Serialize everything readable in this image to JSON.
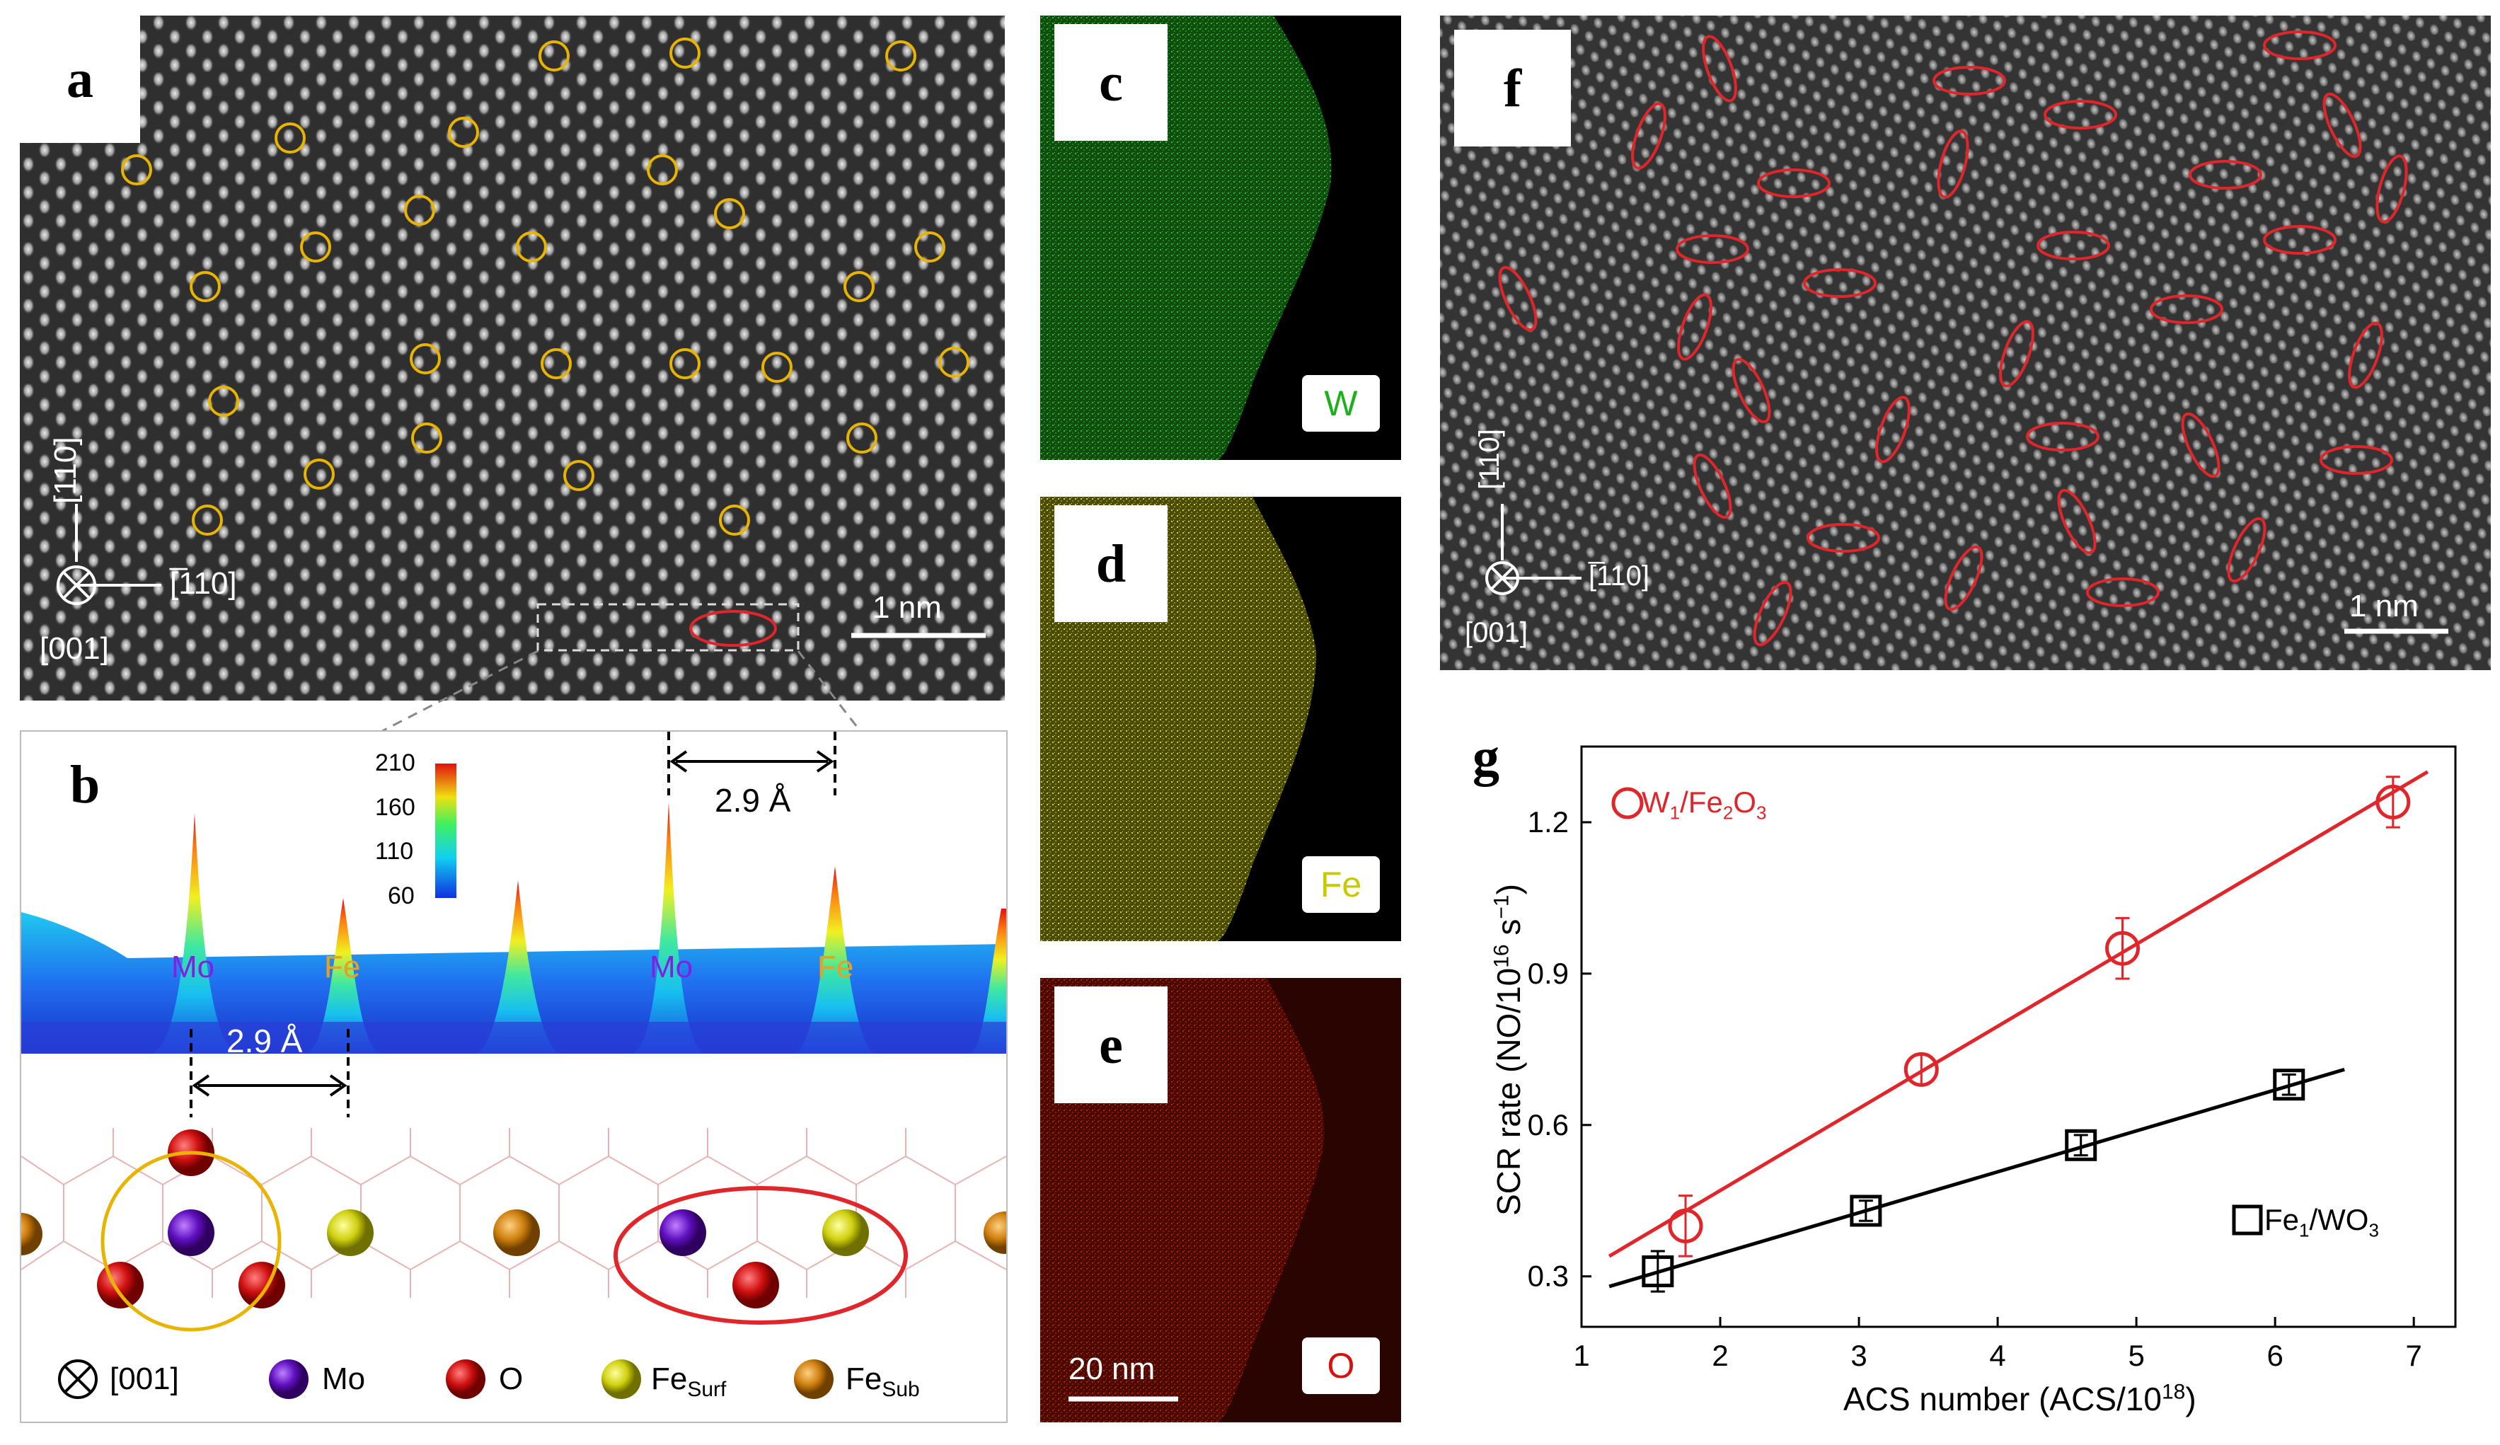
{
  "panels": {
    "a": {
      "label": "a",
      "axis_top": "[110]",
      "axis_right": "[̅110]",
      "axis_bottom": "[001]",
      "scale": "1 nm"
    },
    "b": {
      "label": "b",
      "dist_top": "2.9 Å",
      "dist_bottom": "2.9 Å",
      "colorbar": [
        "210",
        "160",
        "110",
        "60"
      ],
      "peaks": [
        "Mo",
        "Fe",
        "Mo",
        "Fe"
      ],
      "legend": {
        "axis": "[001]",
        "mo": "Mo",
        "o": "O",
        "fe_surf": "Fe",
        "fe_surf_sub": "Surf",
        "fe_sub": "Fe",
        "fe_sub_sub": "Sub"
      }
    },
    "c": {
      "label": "c",
      "element": "W"
    },
    "d": {
      "label": "d",
      "element": "Fe"
    },
    "e": {
      "label": "e",
      "element": "O",
      "scale": "20 nm"
    },
    "f": {
      "label": "f",
      "axis_top": "[110]",
      "axis_right": "[̅110]",
      "axis_bottom": "[001]",
      "scale": "1 nm"
    },
    "g": {
      "label": "g"
    }
  },
  "colors": {
    "red": "#e0262a",
    "yellow": "#e8b400",
    "green": "#1db01d",
    "fe_yellow": "#c9c900",
    "o_red": "#d81010"
  },
  "chart_data": {
    "type": "scatter",
    "xlabel": "ACS number (ACS/10",
    "xlabel_sup": "18",
    "xlabel_end": ")",
    "ylabel": "SCR rate (NO/10",
    "ylabel_sup": "16",
    "ylabel_mid": " s",
    "ylabel_sup2": "−1",
    "ylabel_end": ")",
    "xlim": [
      1,
      7.3
    ],
    "ylim": [
      0.2,
      1.35
    ],
    "xticks": [
      "1",
      "2",
      "3",
      "4",
      "5",
      "6",
      "7"
    ],
    "yticks": [
      "0.3",
      "0.6",
      "0.9",
      "1.2"
    ],
    "series": [
      {
        "name": "W1/Fe2O3",
        "legend_main": "W",
        "legend_s1": "1",
        "legend_mid": "/Fe",
        "legend_s2": "2",
        "legend_mid2": "O",
        "legend_s3": "3",
        "color": "#e0262a",
        "marker": "circle",
        "points": [
          [
            1.75,
            0.4,
            0.06
          ],
          [
            3.45,
            0.71,
            0.03
          ],
          [
            4.9,
            0.95,
            0.06
          ],
          [
            6.85,
            1.24,
            0.05
          ]
        ],
        "fit": [
          [
            1.2,
            0.34
          ],
          [
            7.1,
            1.3
          ]
        ]
      },
      {
        "name": "Fe1/WO3",
        "legend_main": "Fe",
        "legend_s1": "1",
        "legend_mid": "/WO",
        "legend_s2": "3",
        "color": "#000000",
        "marker": "square",
        "points": [
          [
            1.55,
            0.31,
            0.04
          ],
          [
            3.05,
            0.43,
            0.02
          ],
          [
            4.6,
            0.56,
            0.02
          ],
          [
            6.1,
            0.68,
            0.02
          ]
        ],
        "fit": [
          [
            1.2,
            0.28
          ],
          [
            6.5,
            0.71
          ]
        ]
      }
    ]
  }
}
